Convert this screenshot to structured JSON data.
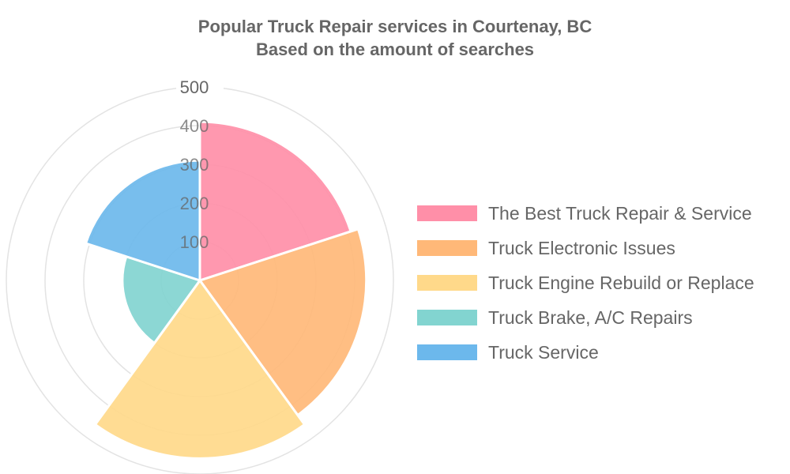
{
  "title_line1": "Popular Truck Repair services in Courtenay, BC",
  "title_line2": "Based on the amount of searches",
  "chart_data": {
    "type": "polarArea",
    "title": "Popular Truck Repair services in Courtenay, BC",
    "subtitle": "Based on the amount of searches",
    "categories": [
      "The Best Truck Repair & Service",
      "Truck Electronic Issues",
      "Truck Engine Rebuild or Replace",
      "Truck Brake, A/C Repairs",
      "Truck Service"
    ],
    "values": [
      410,
      430,
      460,
      200,
      310
    ],
    "colors": [
      "#ff8fa8",
      "#ffb878",
      "#ffd98a",
      "#82d4d0",
      "#6cb8ec"
    ],
    "r_ticks": [
      "100",
      "200",
      "300",
      "400",
      "500"
    ],
    "rlim": [
      0,
      500
    ],
    "grid": true,
    "legend": "right"
  }
}
